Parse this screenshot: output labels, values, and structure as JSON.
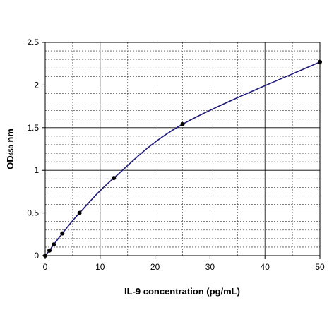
{
  "chart_data": {
    "type": "line",
    "title": "",
    "xlabel": "IL-9 concentration (pg/mL)",
    "ylabel_main": "OD",
    "ylabel_sub": "450",
    "ylabel_unit": " nm",
    "xlim": [
      0,
      50
    ],
    "ylim": [
      0,
      2.5
    ],
    "x_ticks": [
      0,
      10,
      20,
      30,
      40,
      50
    ],
    "x_tick_labels": [
      "0",
      "10",
      "20",
      "30",
      "40",
      "50"
    ],
    "y_ticks": [
      0,
      0.5,
      1,
      1.5,
      2,
      2.5
    ],
    "y_tick_labels": [
      "0",
      "0.5",
      "1",
      "1.5",
      "2",
      "2.5"
    ],
    "x_minor_grid": [
      5,
      15,
      25,
      35,
      45
    ],
    "y_minor_grid_step": 0.1,
    "grid": true,
    "legend": false,
    "line_color": "#1f1a78",
    "marker_color": "#000000",
    "series": [
      {
        "x": [
          0,
          0.78,
          1.56,
          3.12,
          6.25,
          12.5,
          25,
          50
        ],
        "y": [
          0.0,
          0.06,
          0.13,
          0.26,
          0.5,
          0.91,
          1.54,
          2.27
        ]
      }
    ]
  }
}
